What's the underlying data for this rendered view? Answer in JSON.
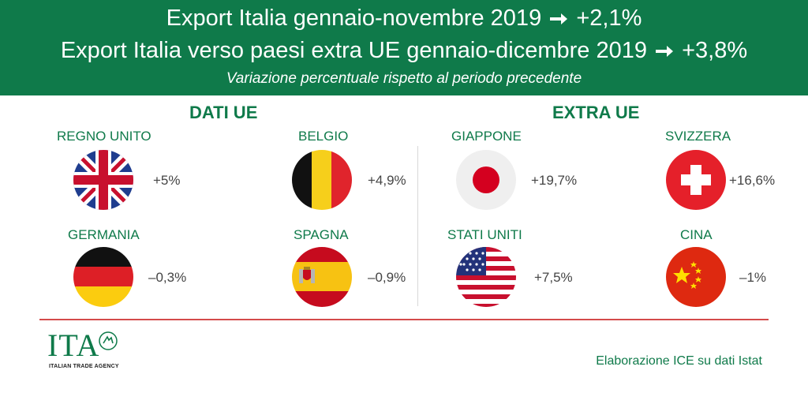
{
  "header": {
    "line1_text": "Export Italia gennaio-novembre 2019",
    "line1_value": "+2,1%",
    "line2_text": "Export Italia verso paesi extra UE gennaio-dicembre 2019",
    "line2_value": "+3,8%",
    "subtitle": "Variazione percentuale rispetto al periodo precedente"
  },
  "sections": {
    "ue_title": "DATI UE",
    "extra_title": "EXTRA UE"
  },
  "countries": [
    {
      "name": "REGNO UNITO",
      "value": "+5%",
      "flag": "uk-flag-icon"
    },
    {
      "name": "BELGIO",
      "value": "+4,9%",
      "flag": "belgium-flag-icon"
    },
    {
      "name": "GIAPPONE",
      "value": "+19,7%",
      "flag": "japan-flag-icon"
    },
    {
      "name": "SVIZZERA",
      "value": "+16,6%",
      "flag": "switzerland-flag-icon"
    },
    {
      "name": "GERMANIA",
      "value": "–0,3%",
      "flag": "germany-flag-icon"
    },
    {
      "name": "SPAGNA",
      "value": "–0,9%",
      "flag": "spain-flag-icon"
    },
    {
      "name": "STATI UNITI",
      "value": "+7,5%",
      "flag": "usa-flag-icon"
    },
    {
      "name": "CINA",
      "value": "–1%",
      "flag": "china-flag-icon"
    }
  ],
  "logo": {
    "text": "ITA",
    "subtitle": "ITALIAN TRADE AGENCY"
  },
  "footer": "Elaborazione ICE su dati Istat",
  "colors": {
    "brand_green": "#0f7a4a",
    "divider_red": "#d44b4b"
  }
}
